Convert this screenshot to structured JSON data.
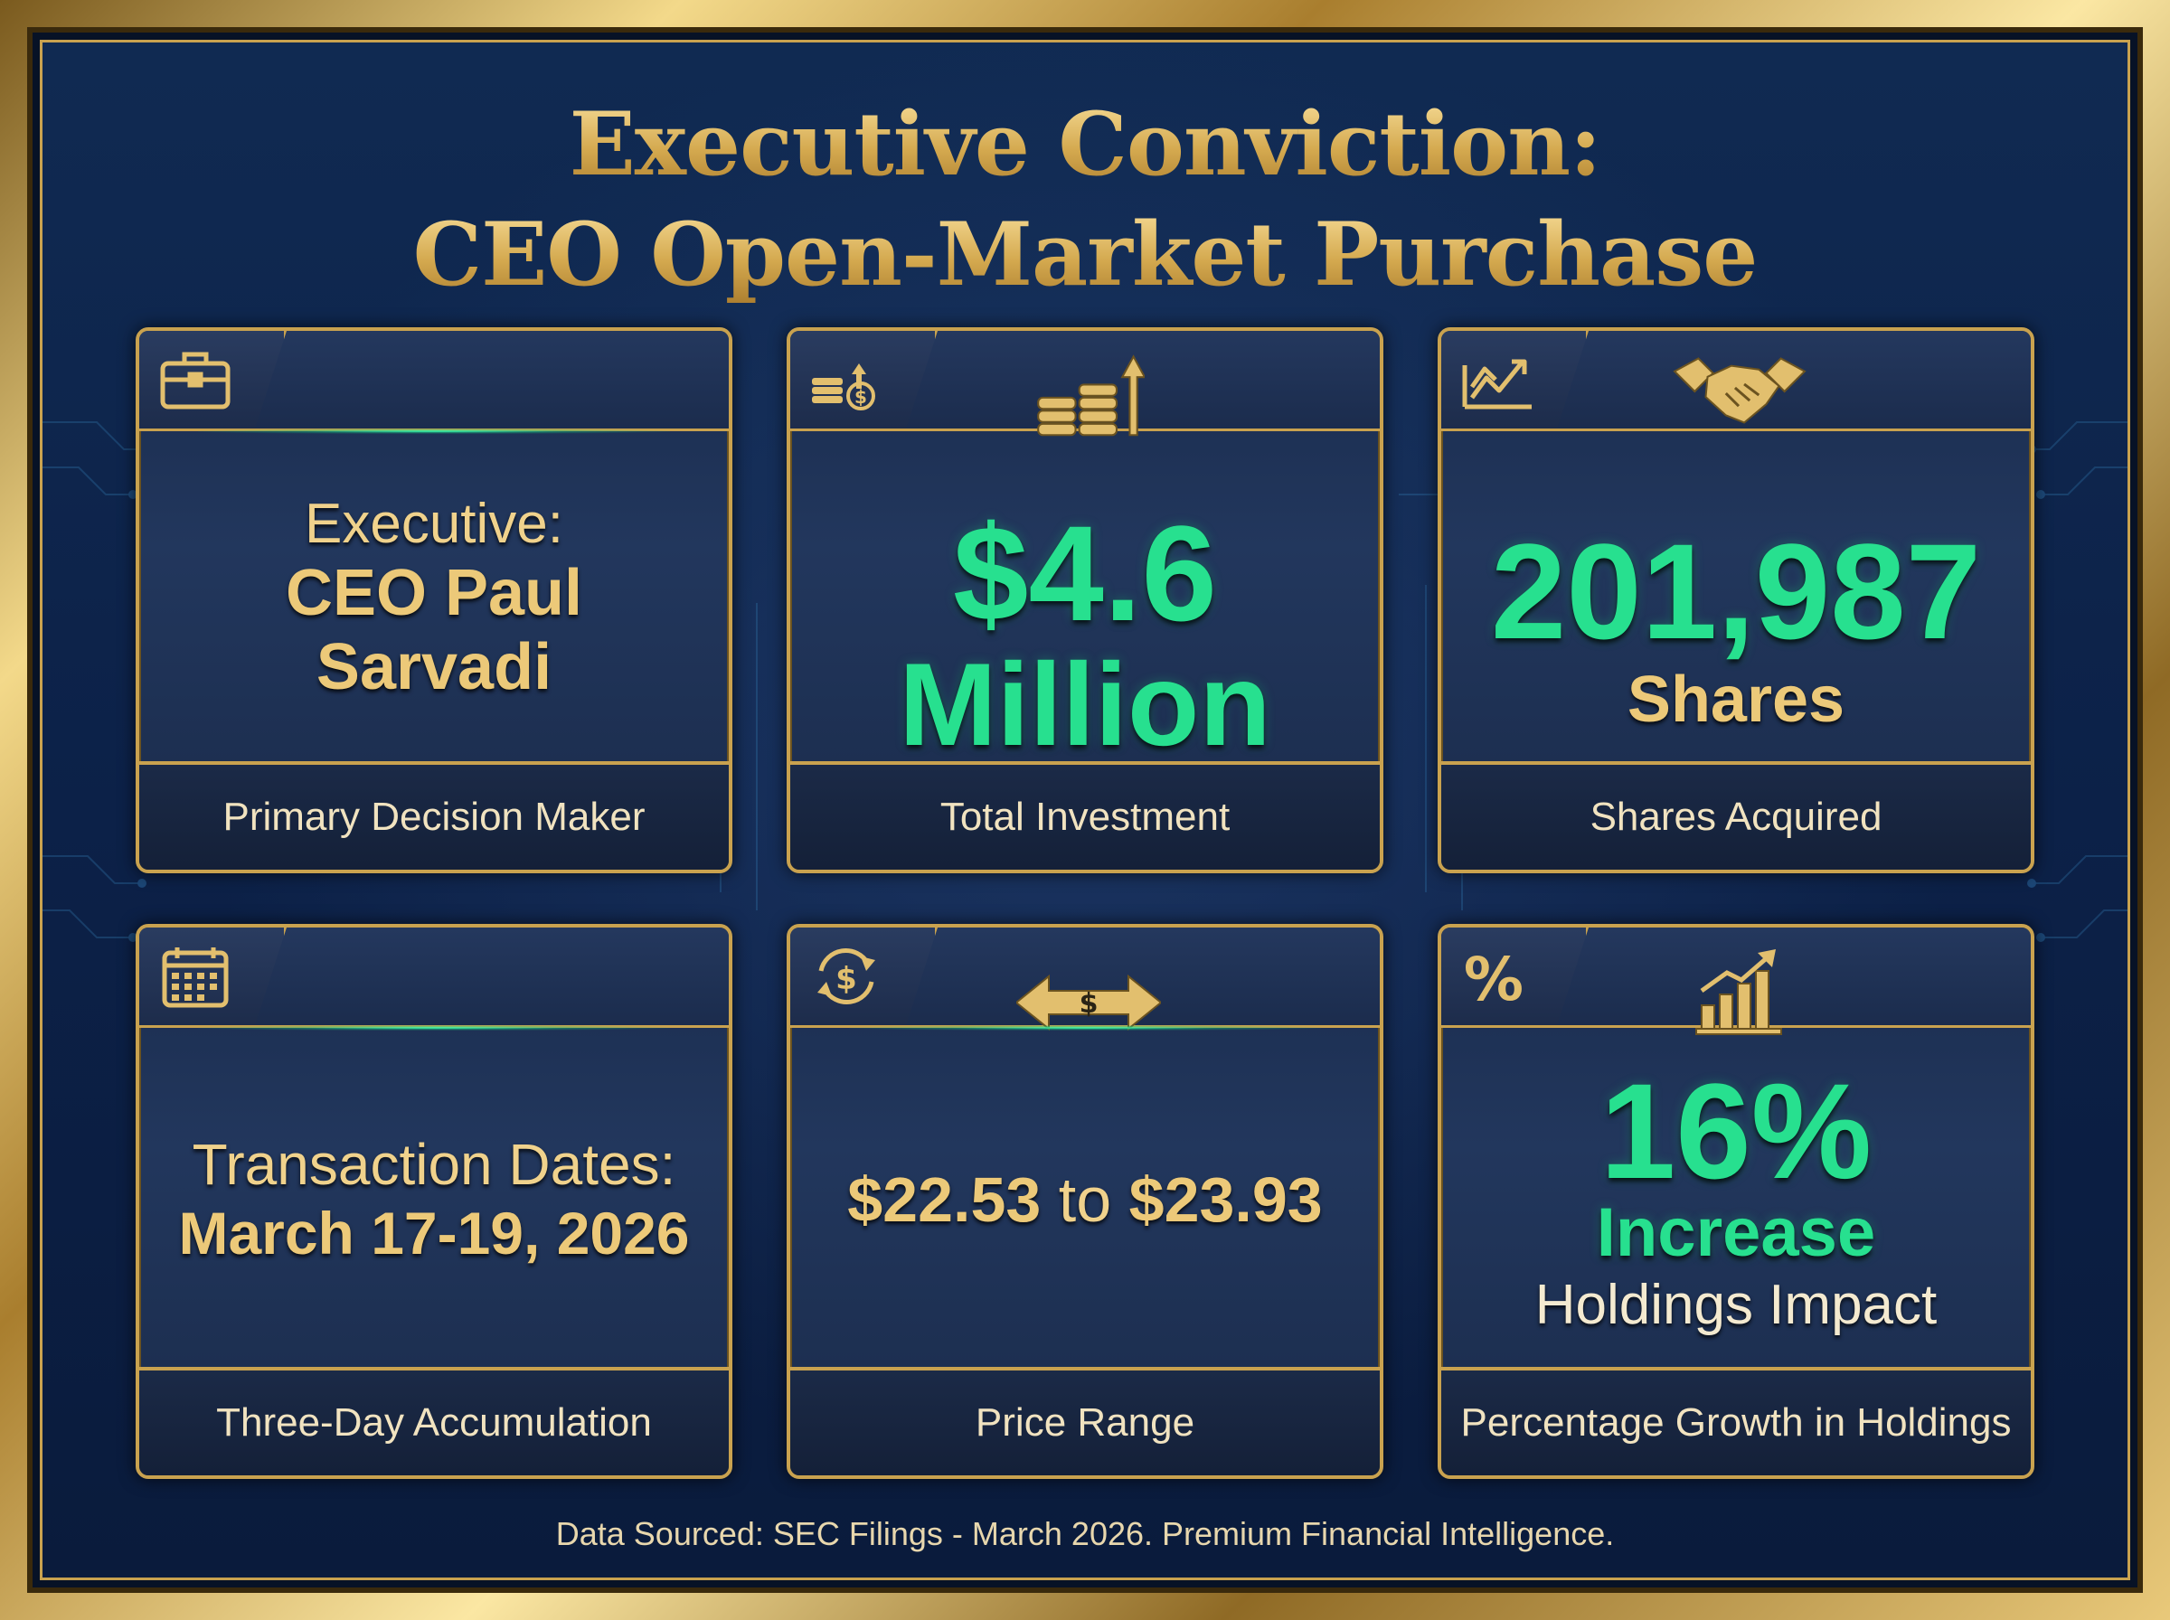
{
  "title": {
    "line1": "Executive Conviction:",
    "line2": "CEO Open-Market Purchase"
  },
  "cards": [
    {
      "tab_icon": "briefcase-icon",
      "lines": [
        "Executive:",
        "CEO Paul",
        "Sarvadi"
      ],
      "footer": "Primary Decision Maker"
    },
    {
      "tab_icon": "coins-dollar-arrow-icon",
      "center_icon": "coins-up-arrow-icon",
      "value": "$4.6",
      "value_unit": "Million",
      "footer": "Total Investment"
    },
    {
      "tab_icon": "line-chart-trend-icon",
      "center_icon": "handshake-icon",
      "value": "201,987",
      "value_unit": "Shares",
      "footer": "Shares Acquired"
    },
    {
      "tab_icon": "calendar-icon",
      "lines": [
        "Transaction Dates:",
        "March 17-19, 2026"
      ],
      "footer": "Three-Day Accumulation"
    },
    {
      "tab_icon": "dollar-cycle-icon",
      "center_icon": "dollar-double-arrow-icon",
      "range_low": "$22.53",
      "range_to": "to",
      "range_high": "$23.93",
      "footer": "Price Range"
    },
    {
      "tab_icon": "percent-icon",
      "center_icon": "bar-chart-growth-icon",
      "value": "16%",
      "value_sub": "Increase",
      "value_note": "Holdings Impact",
      "footer": "Percentage Growth in Holdings"
    }
  ],
  "source_note": "Data Sourced: SEC Filings - March 2026. Premium Financial Intelligence.",
  "colors": {
    "gold": "#c9a24f",
    "green": "#27e08f",
    "background": "#0c2148"
  }
}
